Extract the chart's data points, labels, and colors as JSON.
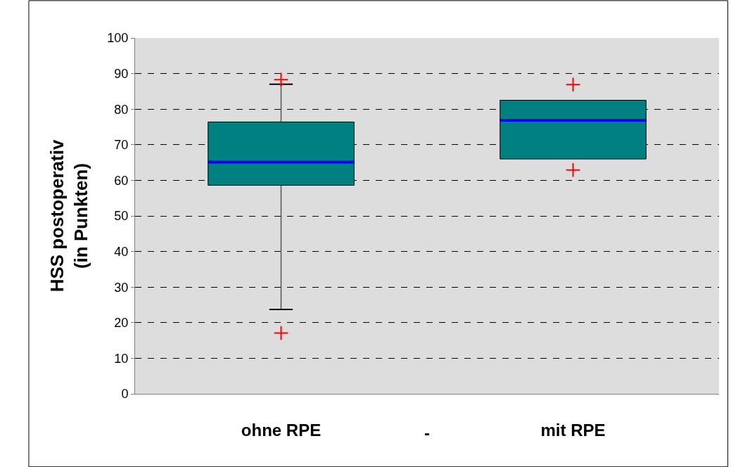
{
  "chart_data": {
    "type": "box",
    "ylabel": "HSS postoperativ\n(in Punkten)",
    "categories": [
      "ohne RPE",
      "mit RPE"
    ],
    "boxes": [
      {
        "low": 23.7,
        "q1": 58.6,
        "median": 65.1,
        "q3": 76.4,
        "high": 87.0,
        "outliers": [
          88.3,
          17.1
        ]
      },
      {
        "low": 66.0,
        "q1": 66.0,
        "median": 76.9,
        "q3": 82.5,
        "high": 82.5,
        "outliers": [
          86.9,
          62.9
        ]
      }
    ],
    "color": "#008080",
    "annotations": [
      "-"
    ],
    "ylim": [
      0,
      100
    ],
    "yticks": [
      0,
      10,
      20,
      30,
      40,
      50,
      60,
      70,
      80,
      90,
      100
    ],
    "grid": "y"
  }
}
